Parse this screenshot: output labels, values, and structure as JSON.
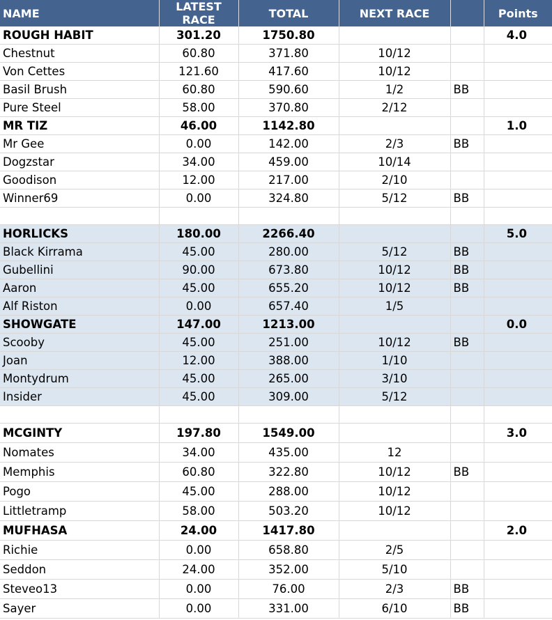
{
  "headers": {
    "name": "NAME",
    "latest": "LATEST RACE",
    "total": "TOTAL",
    "next": "NEXT RACE",
    "extra": "",
    "points": "Points"
  },
  "rows": [
    {
      "type": "team",
      "shade": false,
      "tall": false,
      "name": "ROUGH HABIT",
      "latest": "301.20",
      "total": "1750.80",
      "next": "",
      "bb": "",
      "points": "4.0"
    },
    {
      "type": "member",
      "shade": false,
      "tall": false,
      "name": "Chestnut",
      "latest": "60.80",
      "total": "371.80",
      "next": "10/12",
      "bb": "",
      "points": ""
    },
    {
      "type": "member",
      "shade": false,
      "tall": false,
      "name": "Von Cettes",
      "latest": "121.60",
      "total": "417.60",
      "next": "10/12",
      "bb": "",
      "points": ""
    },
    {
      "type": "member",
      "shade": false,
      "tall": false,
      "name": "Basil Brush",
      "latest": "60.80",
      "total": "590.60",
      "next": "1/2",
      "bb": "BB",
      "points": ""
    },
    {
      "type": "member",
      "shade": false,
      "tall": false,
      "name": "Pure Steel",
      "latest": "58.00",
      "total": "370.80",
      "next": "2/12",
      "bb": "",
      "points": ""
    },
    {
      "type": "team",
      "shade": false,
      "tall": false,
      "name": "MR TIZ",
      "latest": "46.00",
      "total": "1142.80",
      "next": "",
      "bb": "",
      "points": "1.0"
    },
    {
      "type": "member",
      "shade": false,
      "tall": false,
      "name": "Mr Gee",
      "latest": "0.00",
      "total": "142.00",
      "next": "2/3",
      "bb": "BB",
      "points": ""
    },
    {
      "type": "member",
      "shade": false,
      "tall": false,
      "name": "Dogzstar",
      "latest": "34.00",
      "total": "459.00",
      "next": "10/14",
      "bb": "",
      "points": ""
    },
    {
      "type": "member",
      "shade": false,
      "tall": false,
      "name": "Goodison",
      "latest": "12.00",
      "total": "217.00",
      "next": "2/10",
      "bb": "",
      "points": ""
    },
    {
      "type": "member",
      "shade": false,
      "tall": false,
      "name": "Winner69",
      "latest": "0.00",
      "total": "324.80",
      "next": "5/12",
      "bb": "BB",
      "points": ""
    },
    {
      "type": "gap",
      "shade": false,
      "tall": false,
      "name": "",
      "latest": "",
      "total": "",
      "next": "",
      "bb": "",
      "points": ""
    },
    {
      "type": "team",
      "shade": true,
      "tall": false,
      "name": "HORLICKS",
      "latest": "180.00",
      "total": "2266.40",
      "next": "",
      "bb": "",
      "points": "5.0"
    },
    {
      "type": "member",
      "shade": true,
      "tall": false,
      "name": "Black Kirrama",
      "latest": "45.00",
      "total": "280.00",
      "next": "5/12",
      "bb": "BB",
      "points": ""
    },
    {
      "type": "member",
      "shade": true,
      "tall": false,
      "name": "Gubellini",
      "latest": "90.00",
      "total": "673.80",
      "next": "10/12",
      "bb": "BB",
      "points": ""
    },
    {
      "type": "member",
      "shade": true,
      "tall": false,
      "name": "Aaron",
      "latest": "45.00",
      "total": "655.20",
      "next": "10/12",
      "bb": "BB",
      "points": ""
    },
    {
      "type": "member",
      "shade": true,
      "tall": false,
      "name": "Alf Riston",
      "latest": "0.00",
      "total": "657.40",
      "next": "1/5",
      "bb": "",
      "points": ""
    },
    {
      "type": "team",
      "shade": true,
      "tall": false,
      "name": "SHOWGATE",
      "latest": "147.00",
      "total": "1213.00",
      "next": "",
      "bb": "",
      "points": "0.0"
    },
    {
      "type": "member",
      "shade": true,
      "tall": false,
      "name": "Scooby",
      "latest": "45.00",
      "total": "251.00",
      "next": "10/12",
      "bb": "BB",
      "points": ""
    },
    {
      "type": "member",
      "shade": true,
      "tall": false,
      "name": "Joan",
      "latest": "12.00",
      "total": "388.00",
      "next": "1/10",
      "bb": "",
      "points": ""
    },
    {
      "type": "member",
      "shade": true,
      "tall": false,
      "name": "Montydrum",
      "latest": "45.00",
      "total": "265.00",
      "next": "3/10",
      "bb": "",
      "points": ""
    },
    {
      "type": "member",
      "shade": true,
      "tall": false,
      "name": "Insider",
      "latest": "45.00",
      "total": "309.00",
      "next": "5/12",
      "bb": "",
      "points": ""
    },
    {
      "type": "gap",
      "shade": false,
      "tall": false,
      "name": "",
      "latest": "",
      "total": "",
      "next": "",
      "bb": "",
      "points": ""
    },
    {
      "type": "team",
      "shade": false,
      "tall": true,
      "name": "MCGINTY",
      "latest": "197.80",
      "total": "1549.00",
      "next": "",
      "bb": "",
      "points": "3.0"
    },
    {
      "type": "member",
      "shade": false,
      "tall": true,
      "name": "Nomates",
      "latest": "34.00",
      "total": "435.00",
      "next": "12",
      "bb": "",
      "points": ""
    },
    {
      "type": "member",
      "shade": false,
      "tall": true,
      "name": "Memphis",
      "latest": "60.80",
      "total": "322.80",
      "next": "10/12",
      "bb": "BB",
      "points": ""
    },
    {
      "type": "member",
      "shade": false,
      "tall": true,
      "name": "Pogo",
      "latest": "45.00",
      "total": "288.00",
      "next": "10/12",
      "bb": "",
      "points": ""
    },
    {
      "type": "member",
      "shade": false,
      "tall": true,
      "name": "Littletramp",
      "latest": "58.00",
      "total": "503.20",
      "next": "10/12",
      "bb": "",
      "points": ""
    },
    {
      "type": "team",
      "shade": false,
      "tall": true,
      "name": "MUFHASA",
      "latest": "24.00",
      "total": "1417.80",
      "next": "",
      "bb": "",
      "points": "2.0"
    },
    {
      "type": "member",
      "shade": false,
      "tall": true,
      "name": "Richie",
      "latest": "0.00",
      "total": "658.80",
      "next": "2/5",
      "bb": "",
      "points": ""
    },
    {
      "type": "member",
      "shade": false,
      "tall": true,
      "name": "Seddon",
      "latest": "24.00",
      "total": "352.00",
      "next": "5/10",
      "bb": "",
      "points": ""
    },
    {
      "type": "member",
      "shade": false,
      "tall": true,
      "name": "Steveo13",
      "latest": "0.00",
      "total": "76.00",
      "next": "2/3",
      "bb": "BB",
      "points": ""
    },
    {
      "type": "member",
      "shade": false,
      "tall": true,
      "name": "Sayer",
      "latest": "0.00",
      "total": "331.00",
      "next": "6/10",
      "bb": "BB",
      "points": ""
    }
  ]
}
